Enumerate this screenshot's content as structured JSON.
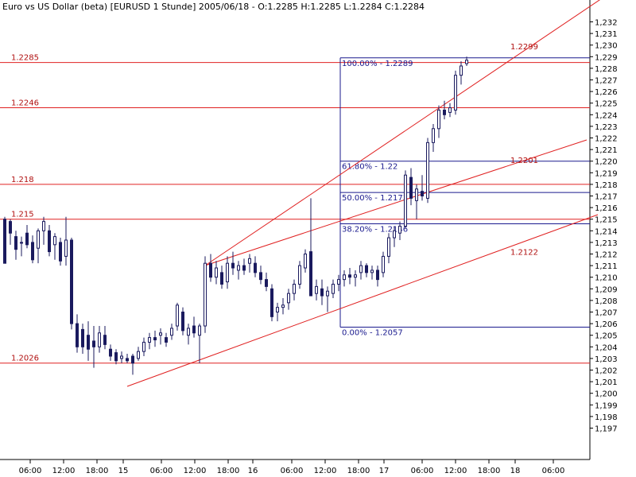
{
  "header": {
    "title": "Euro vs US Dollar (beta) [EURUSD  1 Stunde] 2005/06/18 - O:1.2285 H:1.2285 L:1.2284 C:1.2284"
  },
  "colors": {
    "background": "#ffffff",
    "candle": "#1a1a5e",
    "level_line": "#e02020",
    "fib_line": "#1a1a8e",
    "axis": "#000000"
  },
  "chart_data": {
    "type": "candlestick",
    "title": "Euro vs US Dollar (beta) [EURUSD  1 Stunde] 2005/06/18 - O:1.2285 H:1.2285 L:1.2284 C:1.2284",
    "ylim": [
      1.196,
      1.233
    ],
    "y_ticks": [
      "1,232",
      "1,231",
      "1,230",
      "1,229",
      "1,228",
      "1,227",
      "1,226",
      "1,225",
      "1,224",
      "1,223",
      "1,222",
      "1,221",
      "1,220",
      "1,219",
      "1,218",
      "1,217",
      "1,216",
      "1,215",
      "1,214",
      "1,213",
      "1,212",
      "1,211",
      "1,210",
      "1,209",
      "1,208",
      "1,207",
      "1,206",
      "1,205",
      "1,204",
      "1,203",
      "1,202",
      "1,201",
      "1,200",
      "1,199",
      "1,198",
      "1,197"
    ],
    "x_ticks": [
      "06:00",
      "12:00",
      "18:00",
      "15",
      "06:00",
      "12:00",
      "18:00",
      "16",
      "06:00",
      "12:00",
      "18:00",
      "17",
      "06:00",
      "12:00",
      "18:00",
      "18",
      "06:00"
    ],
    "horizontal_levels": [
      {
        "label": "1.2285",
        "value": 1.2285
      },
      {
        "label": "1.2246",
        "value": 1.2246
      },
      {
        "label": "1.218",
        "value": 1.218
      },
      {
        "label": "1.215",
        "value": 1.215
      },
      {
        "label": "1.2026",
        "value": 1.2026
      }
    ],
    "fib_levels": [
      {
        "label": "100.00% - 1.2289",
        "value": 1.2289
      },
      {
        "label": "61.80% - 1.22",
        "value": 1.22
      },
      {
        "label": "50.00% - 1.2173",
        "value": 1.2173
      },
      {
        "label": "38.20% - 1.2146",
        "value": 1.2146
      },
      {
        "label": "0.00% - 1.2057",
        "value": 1.2057
      }
    ],
    "trendline_labels": [
      {
        "label": "1.2299",
        "value": 1.2299
      },
      {
        "label": "1.2201",
        "value": 1.2201
      },
      {
        "label": "1.2122",
        "value": 1.2122
      }
    ],
    "candles": [
      [
        1.215,
        1.2152,
        1.2112,
        1.2112
      ],
      [
        1.2148,
        1.215,
        1.2128,
        1.2138
      ],
      [
        1.2135,
        1.214,
        1.2115,
        1.2124
      ],
      [
        1.213,
        1.2135,
        1.2118,
        1.213
      ],
      [
        1.2138,
        1.2145,
        1.2125,
        1.2128
      ],
      [
        1.213,
        1.2136,
        1.2112,
        1.2115
      ],
      [
        1.2125,
        1.2142,
        1.2112,
        1.214
      ],
      [
        1.214,
        1.2152,
        1.2128,
        1.2148
      ],
      [
        1.214,
        1.2145,
        1.2118,
        1.2122
      ],
      [
        1.2128,
        1.2138,
        1.2115,
        1.2135
      ],
      [
        1.213,
        1.2134,
        1.211,
        1.2114
      ],
      [
        1.2118,
        1.2152,
        1.211,
        1.2132
      ],
      [
        1.2132,
        1.2134,
        1.2055,
        1.206
      ],
      [
        1.206,
        1.2068,
        1.2035,
        1.204
      ],
      [
        1.2055,
        1.206,
        1.2034,
        1.204
      ],
      [
        1.205,
        1.2062,
        1.2028,
        1.2038
      ],
      [
        1.2045,
        1.2058,
        1.2022,
        1.204
      ],
      [
        1.204,
        1.2058,
        1.2035,
        1.2052
      ],
      [
        1.205,
        1.2058,
        1.2038,
        1.2042
      ],
      [
        1.2038,
        1.2042,
        1.2028,
        1.2032
      ],
      [
        1.2035,
        1.2038,
        1.2025,
        1.2028
      ],
      [
        1.203,
        1.2036,
        1.2026,
        1.2032
      ],
      [
        1.203,
        1.2034,
        1.2026,
        1.2028
      ],
      [
        1.2032,
        1.2034,
        1.2016,
        1.2026
      ],
      [
        1.203,
        1.204,
        1.2028,
        1.2036
      ],
      [
        1.2036,
        1.2048,
        1.2032,
        1.2044
      ],
      [
        1.2044,
        1.2052,
        1.2038,
        1.2048
      ],
      [
        1.2048,
        1.2054,
        1.204,
        1.2046
      ],
      [
        1.205,
        1.2056,
        1.2042,
        1.2052
      ],
      [
        1.2048,
        1.2052,
        1.204,
        1.2044
      ],
      [
        1.205,
        1.206,
        1.2046,
        1.2056
      ],
      [
        1.2058,
        1.2078,
        1.2054,
        1.2076
      ],
      [
        1.207,
        1.2074,
        1.205,
        1.2054
      ],
      [
        1.205,
        1.206,
        1.2042,
        1.2056
      ],
      [
        1.2058,
        1.2066,
        1.2048,
        1.2052
      ],
      [
        1.205,
        1.206,
        1.2026,
        1.2058
      ],
      [
        1.2058,
        1.2118,
        1.2052,
        1.2112
      ],
      [
        1.2112,
        1.212,
        1.2096,
        1.21
      ],
      [
        1.21,
        1.2114,
        1.2094,
        1.2108
      ],
      [
        1.2104,
        1.211,
        1.209,
        1.2094
      ],
      [
        1.2096,
        1.2118,
        1.209,
        1.2112
      ],
      [
        1.2112,
        1.2122,
        1.2102,
        1.2108
      ],
      [
        1.2106,
        1.2114,
        1.2098,
        1.211
      ],
      [
        1.211,
        1.2116,
        1.2102,
        1.2106
      ],
      [
        1.2112,
        1.212,
        1.2104,
        1.2116
      ],
      [
        1.2112,
        1.2118,
        1.21,
        1.2104
      ],
      [
        1.2104,
        1.211,
        1.2094,
        1.2098
      ],
      [
        1.2098,
        1.2104,
        1.2088,
        1.2092
      ],
      [
        1.209,
        1.2094,
        1.2062,
        1.2066
      ],
      [
        1.207,
        1.2078,
        1.2062,
        1.2074
      ],
      [
        1.2074,
        1.2082,
        1.2068,
        1.2076
      ],
      [
        1.2078,
        1.209,
        1.2072,
        1.2086
      ],
      [
        1.2086,
        1.2098,
        1.208,
        1.2094
      ],
      [
        1.2094,
        1.2114,
        1.209,
        1.211
      ],
      [
        1.2108,
        1.2124,
        1.2104,
        1.212
      ],
      [
        1.2122,
        1.2168,
        1.2084,
        1.2084
      ],
      [
        1.2086,
        1.2098,
        1.208,
        1.2092
      ],
      [
        1.209,
        1.2098,
        1.2076,
        1.2084
      ],
      [
        1.2084,
        1.2092,
        1.207,
        1.2088
      ],
      [
        1.2086,
        1.2098,
        1.2082,
        1.2094
      ],
      [
        1.2094,
        1.2102,
        1.2088,
        1.2098
      ],
      [
        1.2098,
        1.2106,
        1.2092,
        1.2102
      ],
      [
        1.2102,
        1.2108,
        1.2094,
        1.21
      ],
      [
        1.21,
        1.2106,
        1.2092,
        1.2102
      ],
      [
        1.2104,
        1.2114,
        1.2098,
        1.211
      ],
      [
        1.211,
        1.2112,
        1.21,
        1.2104
      ],
      [
        1.2104,
        1.211,
        1.2098,
        1.2106
      ],
      [
        1.2106,
        1.211,
        1.2092,
        1.2098
      ],
      [
        1.2104,
        1.2122,
        1.21,
        1.2118
      ],
      [
        1.2118,
        1.2138,
        1.2112,
        1.2134
      ],
      [
        1.2134,
        1.2144,
        1.2126,
        1.214
      ],
      [
        1.2138,
        1.2148,
        1.2132,
        1.2144
      ],
      [
        1.2144,
        1.2192,
        1.2142,
        1.2188
      ],
      [
        1.2186,
        1.2194,
        1.2162,
        1.2168
      ],
      [
        1.2166,
        1.218,
        1.215,
        1.2176
      ],
      [
        1.2174,
        1.2188,
        1.2166,
        1.217
      ],
      [
        1.2168,
        1.222,
        1.2164,
        1.2216
      ],
      [
        1.2216,
        1.2232,
        1.2208,
        1.2228
      ],
      [
        1.2228,
        1.2248,
        1.222,
        1.2244
      ],
      [
        1.2244,
        1.2252,
        1.2236,
        1.224
      ],
      [
        1.2242,
        1.225,
        1.2238,
        1.2246
      ],
      [
        1.2244,
        1.2278,
        1.224,
        1.2274
      ],
      [
        1.2274,
        1.2286,
        1.2266,
        1.2282
      ],
      [
        1.2284,
        1.229,
        1.2282,
        1.2287
      ]
    ]
  }
}
